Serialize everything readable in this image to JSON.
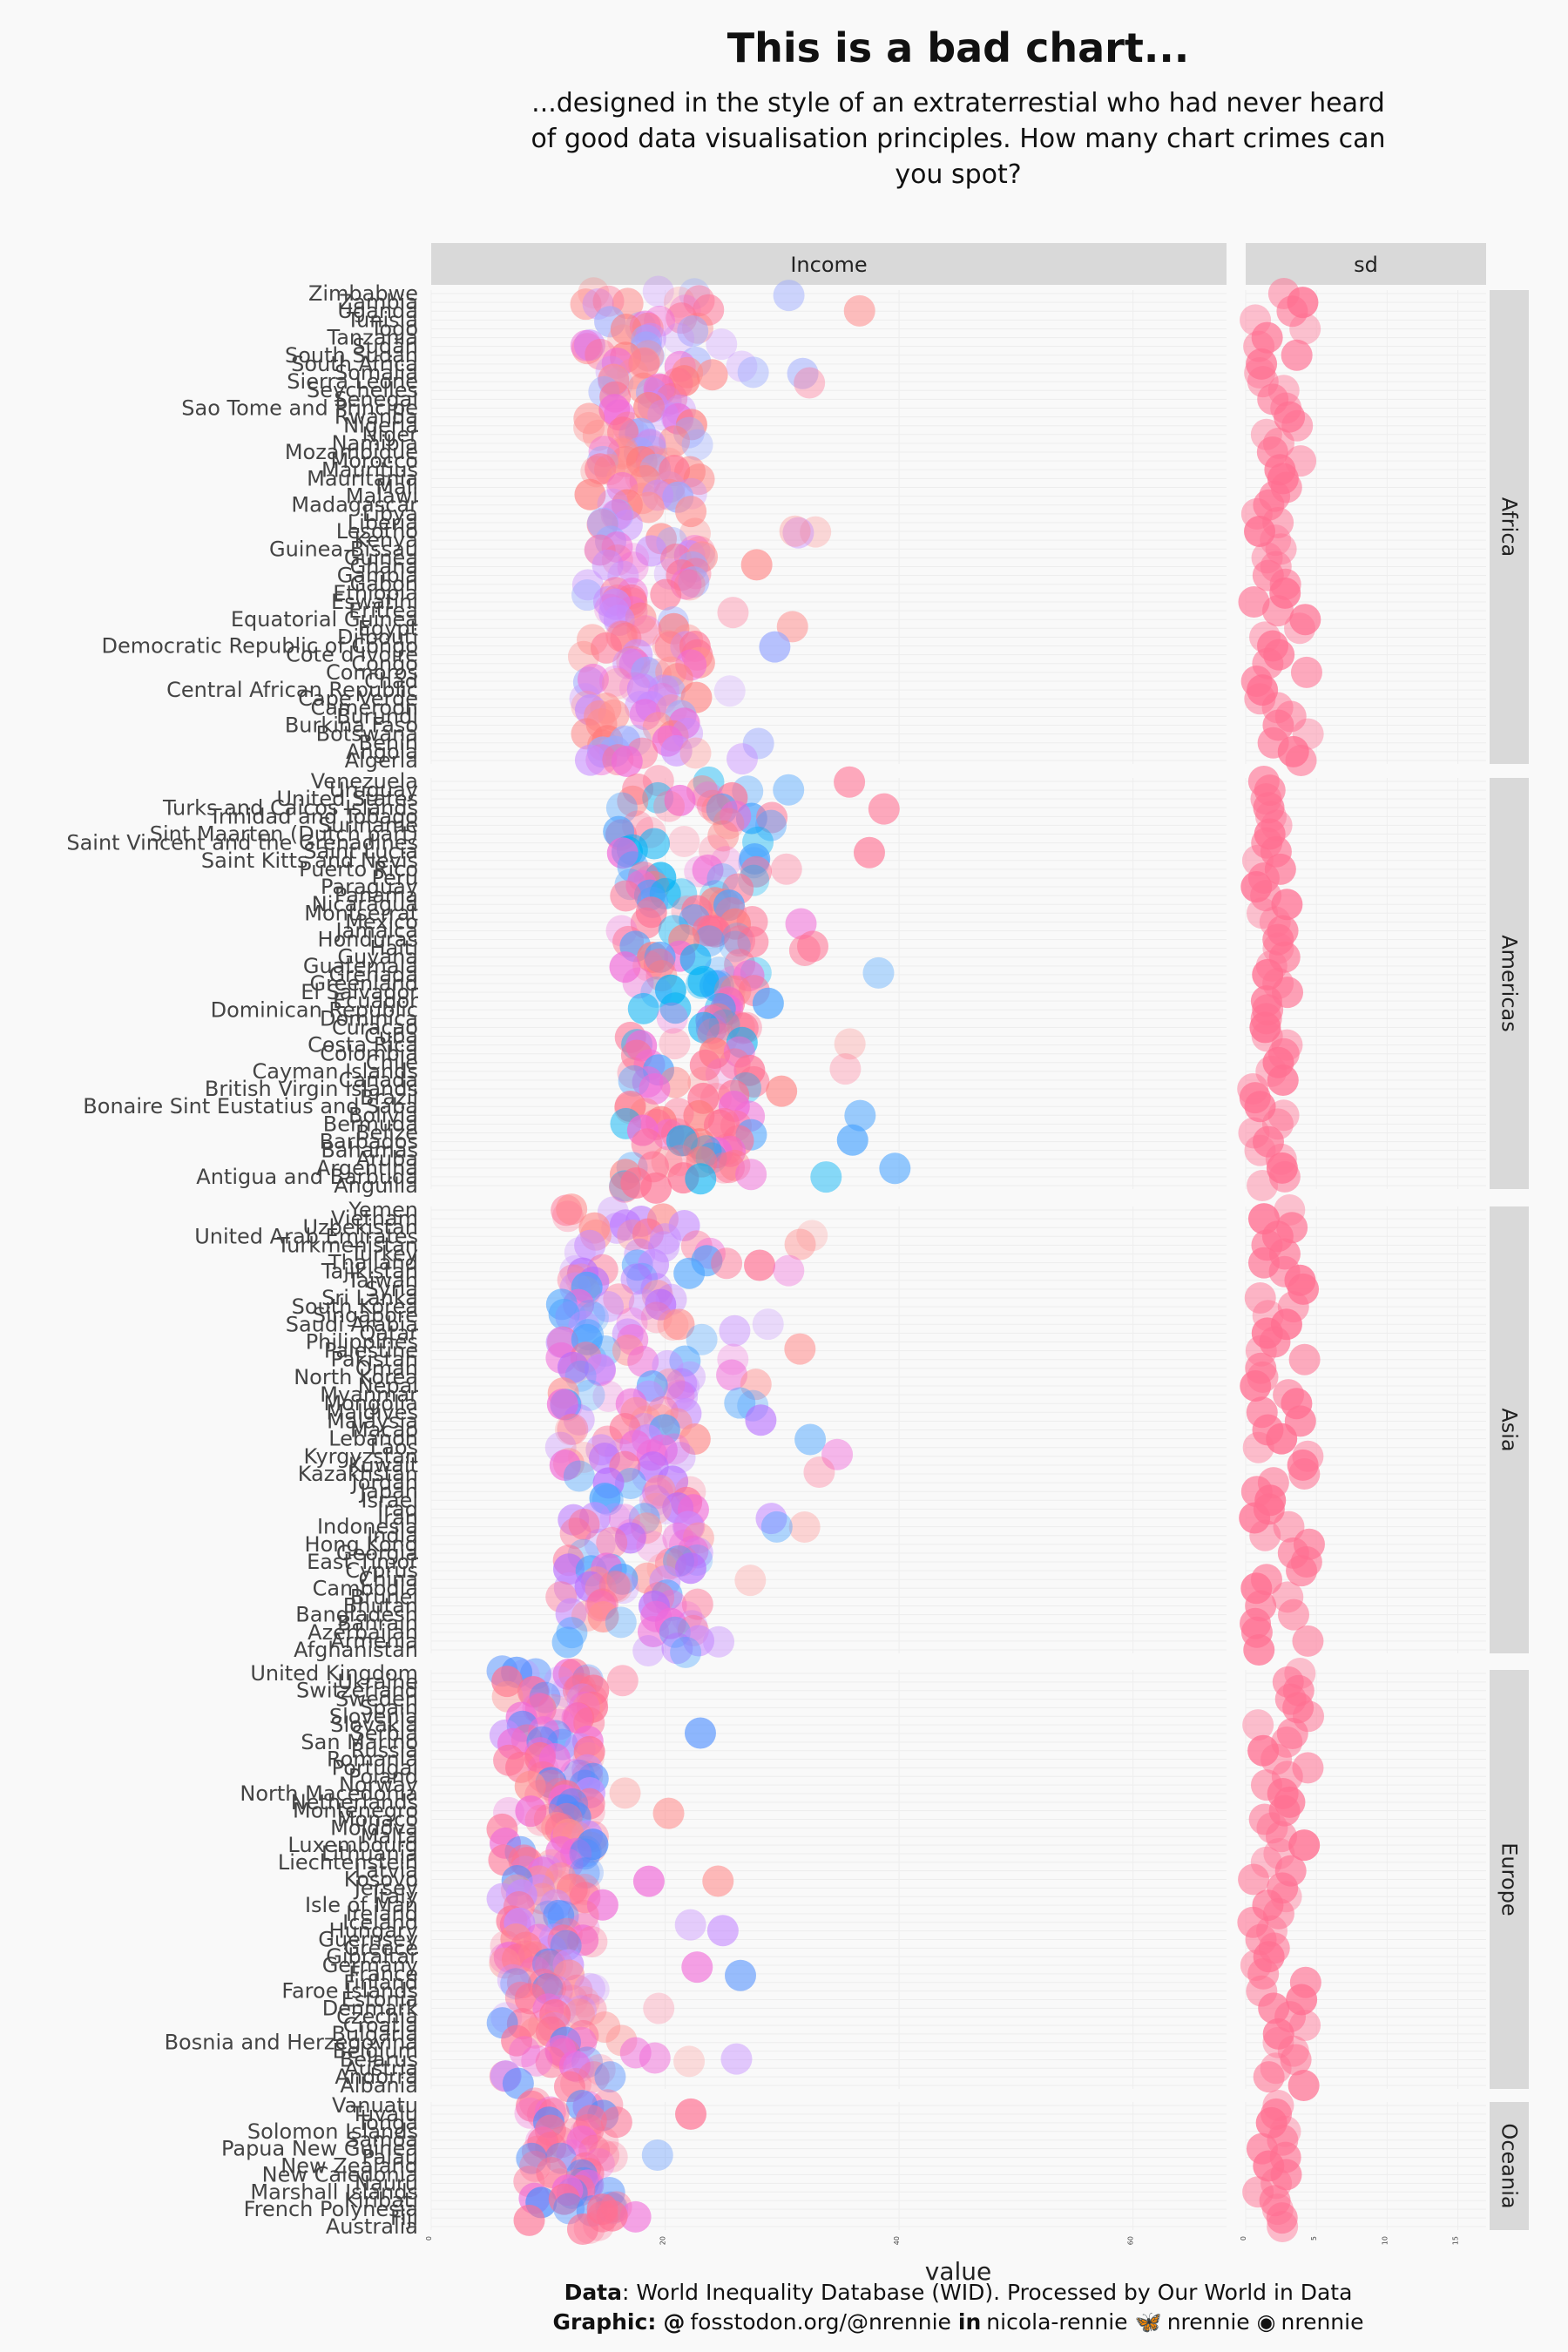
{
  "title": "This is a bad chart...",
  "subtitle": "...designed in the style of an extraterrestial who had never heard of good data visualisation principles. How many chart crimes can you spot?",
  "caption": {
    "data_label": "Data",
    "data_text": ": World Inequality Database (WID). Processed by Our World in Data",
    "graphic_label": "Graphic",
    "handles": [
      {
        "icon": "mastodon-icon",
        "glyph": "@",
        "text": "fosstodon.org/@nrennie"
      },
      {
        "icon": "linkedin-icon",
        "glyph": "in",
        "text": "nicola-rennie"
      },
      {
        "icon": "bluesky-icon",
        "glyph": "🦋",
        "text": "nrennie"
      },
      {
        "icon": "github-icon",
        "glyph": "◉",
        "text": "nrennie"
      }
    ]
  },
  "colors": {
    "strip_bg": "#d9d9d9",
    "panel_bg": "#f9f9f9",
    "pink": "#ff6f91",
    "blue": "#00b2f5",
    "violet": "#b56bff",
    "green": "#6cc400"
  },
  "chart_data": {
    "type": "scatter",
    "xlabel": "value",
    "facet_columns": [
      "Income",
      "sd"
    ],
    "x_axis": {
      "Income": {
        "range": [
          0,
          68
        ],
        "ticks": [
          0,
          20,
          40,
          60
        ]
      },
      "sd": {
        "range": [
          0,
          17
        ],
        "ticks": [
          0,
          5,
          10,
          15
        ]
      }
    },
    "regions": [
      {
        "name": "Africa",
        "countries": [
          "Zimbabwe",
          "Zambia",
          "Uganda",
          "Tunisia",
          "Togo",
          "Tanzania",
          "Sudan",
          "South Sudan",
          "South Africa",
          "Somalia",
          "Sierra Leone",
          "Seychelles",
          "Senegal",
          "Sao Tome and Principe",
          "Rwanda",
          "Nigeria",
          "Niger",
          "Namibia",
          "Mozambique",
          "Morocco",
          "Mauritius",
          "Mauritania",
          "Mali",
          "Malawi",
          "Madagascar",
          "Libya",
          "Liberia",
          "Lesotho",
          "Kenya",
          "Guinea-Bissau",
          "Guinea",
          "Ghana",
          "Gambia",
          "Gabon",
          "Ethiopia",
          "Eswatini",
          "Eritrea",
          "Equatorial Guinea",
          "Egypt",
          "Djibouti",
          "Democratic Republic of Congo",
          "Cote d'Ivoire",
          "Congo",
          "Comoros",
          "Chad",
          "Central African Republic",
          "Cape Verde",
          "Cameroon",
          "Burundi",
          "Burkina Faso",
          "Botswana",
          "Benin",
          "Angola",
          "Algeria"
        ]
      },
      {
        "name": "Americas",
        "countries": [
          "Venezuela",
          "Uruguay",
          "United States",
          "Turks and Caicos Islands",
          "Trinidad and Tobago",
          "Suriname",
          "Sint Maarten (Dutch part)",
          "Saint Vincent and the Grenadines",
          "Saint Lucia",
          "Saint Kitts and Nevis",
          "Puerto Rico",
          "Peru",
          "Paraguay",
          "Panama",
          "Nicaragua",
          "Montserrat",
          "Mexico",
          "Jamaica",
          "Honduras",
          "Haiti",
          "Guyana",
          "Guatemala",
          "Grenada",
          "Greenland",
          "El Salvador",
          "Ecuador",
          "Dominican Republic",
          "Dominica",
          "Curacao",
          "Cuba",
          "Costa Rica",
          "Colombia",
          "Chile",
          "Cayman Islands",
          "Canada",
          "British Virgin Islands",
          "Brazil",
          "Bonaire Sint Eustatius and Saba",
          "Bolivia",
          "Bermuda",
          "Belize",
          "Barbados",
          "Bahamas",
          "Aruba",
          "Argentina",
          "Antigua and Barbuda",
          "Anguilla"
        ]
      },
      {
        "name": "Asia",
        "countries": [
          "Yemen",
          "Vietnam",
          "Uzbekistan",
          "United Arab Emirates",
          "Turkmenistan",
          "Turkey",
          "Thailand",
          "Tajikistan",
          "Taiwan",
          "Syria",
          "Sri Lanka",
          "South Korea",
          "Singapore",
          "Saudi Arabia",
          "Qatar",
          "Philippines",
          "Palestine",
          "Pakistan",
          "Oman",
          "North Korea",
          "Nepal",
          "Myanmar",
          "Mongolia",
          "Maldives",
          "Malaysia",
          "Macao",
          "Lebanon",
          "Laos",
          "Kyrgyzstan",
          "Kuwait",
          "Kazakhstan",
          "Jordan",
          "Japan",
          "Israel",
          "Iraq",
          "Iran",
          "Indonesia",
          "India",
          "Hong Kong",
          "Georgia",
          "East Timor",
          "Cyprus",
          "China",
          "Cambodia",
          "Brunei",
          "Bhutan",
          "Bangladesh",
          "Bahrain",
          "Azerbaijan",
          "Armenia",
          "Afghanistan"
        ]
      },
      {
        "name": "Europe",
        "countries": [
          "United Kingdom",
          "Ukraine",
          "Switzerland",
          "Sweden",
          "Spain",
          "Slovenia",
          "Slovakia",
          "Serbia",
          "San Marino",
          "Russia",
          "Romania",
          "Portugal",
          "Poland",
          "Norway",
          "North Macedonia",
          "Netherlands",
          "Montenegro",
          "Monaco",
          "Moldova",
          "Malta",
          "Luxembourg",
          "Lithuania",
          "Liechtenstein",
          "Latvia",
          "Kosovo",
          "Jersey",
          "Italy",
          "Isle of Man",
          "Ireland",
          "Iceland",
          "Hungary",
          "Guernsey",
          "Greece",
          "Gibraltar",
          "Germany",
          "France",
          "Finland",
          "Faroe Islands",
          "Estonia",
          "Denmark",
          "Czechia",
          "Croatia",
          "Bulgaria",
          "Bosnia and Herzegovina",
          "Belgium",
          "Belarus",
          "Austria",
          "Andorra",
          "Albania"
        ]
      },
      {
        "name": "Oceania",
        "countries": [
          "Vanuatu",
          "Tuvalu",
          "Tonga",
          "Solomon Islands",
          "Samoa",
          "Papua New Guinea",
          "Palau",
          "New Zealand",
          "New Caledonia",
          "Nauru",
          "Marshall Islands",
          "Kiribati",
          "French Polynesia",
          "Fiji",
          "Australia"
        ]
      }
    ]
  }
}
